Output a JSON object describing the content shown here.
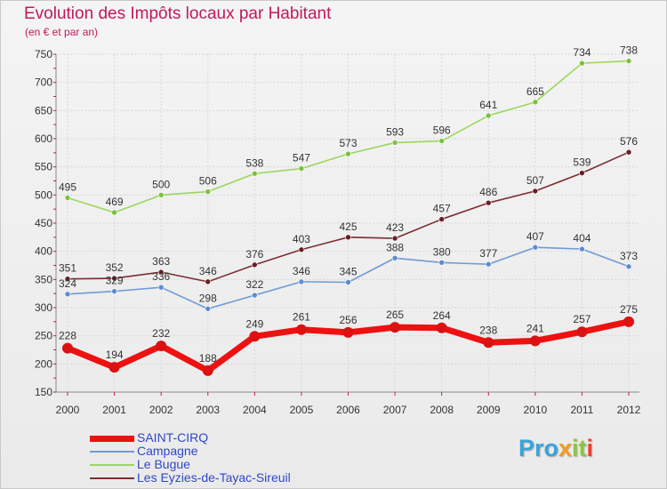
{
  "header": {
    "title": "Evolution des Impôts locaux par Habitant",
    "subtitle": "(en € et par an)"
  },
  "logo": {
    "text": "Proxiti",
    "parts": [
      "Pro",
      "x",
      "it",
      "i"
    ]
  },
  "colors": {
    "title": "#c2185b",
    "legend_text": "#2f47c8",
    "grid": "#d7d7d7",
    "axis_text": "#333333"
  },
  "chart_data": {
    "type": "line",
    "title": "Evolution des Impôts locaux par Habitant",
    "subtitle": "(en € et par an)",
    "x": [
      "2000",
      "2001",
      "2002",
      "2003",
      "2004",
      "2005",
      "2006",
      "2007",
      "2008",
      "2009",
      "2010",
      "2011",
      "2012"
    ],
    "ylim": [
      150,
      750
    ],
    "yticks": [
      150,
      200,
      250,
      300,
      350,
      400,
      450,
      500,
      550,
      600,
      650,
      700,
      750
    ],
    "grid": true,
    "legend_position": "bottom-left",
    "series": [
      {
        "name": "SAINT-CIRQ",
        "color": "#ee1111",
        "marker_color": "#dd1111",
        "values": [
          228,
          194,
          232,
          188,
          249,
          261,
          256,
          265,
          264,
          238,
          241,
          257,
          275
        ]
      },
      {
        "name": "Campagne",
        "color": "#6f9bd6",
        "marker_color": "#5b8bd0",
        "values": [
          324,
          329,
          336,
          298,
          322,
          346,
          345,
          388,
          380,
          377,
          407,
          404,
          373
        ]
      },
      {
        "name": "Le Bugue",
        "color": "#9bd65c",
        "marker_color": "#7cc13a",
        "values": [
          495,
          469,
          500,
          506,
          538,
          547,
          573,
          593,
          596,
          641,
          665,
          734,
          738
        ]
      },
      {
        "name": "Les Eyzies-de-Tayac-Sireuil",
        "color": "#7a2e33",
        "marker_color": "#6a1d22",
        "values": [
          351,
          352,
          363,
          346,
          376,
          403,
          425,
          423,
          457,
          486,
          507,
          539,
          576
        ]
      }
    ]
  }
}
